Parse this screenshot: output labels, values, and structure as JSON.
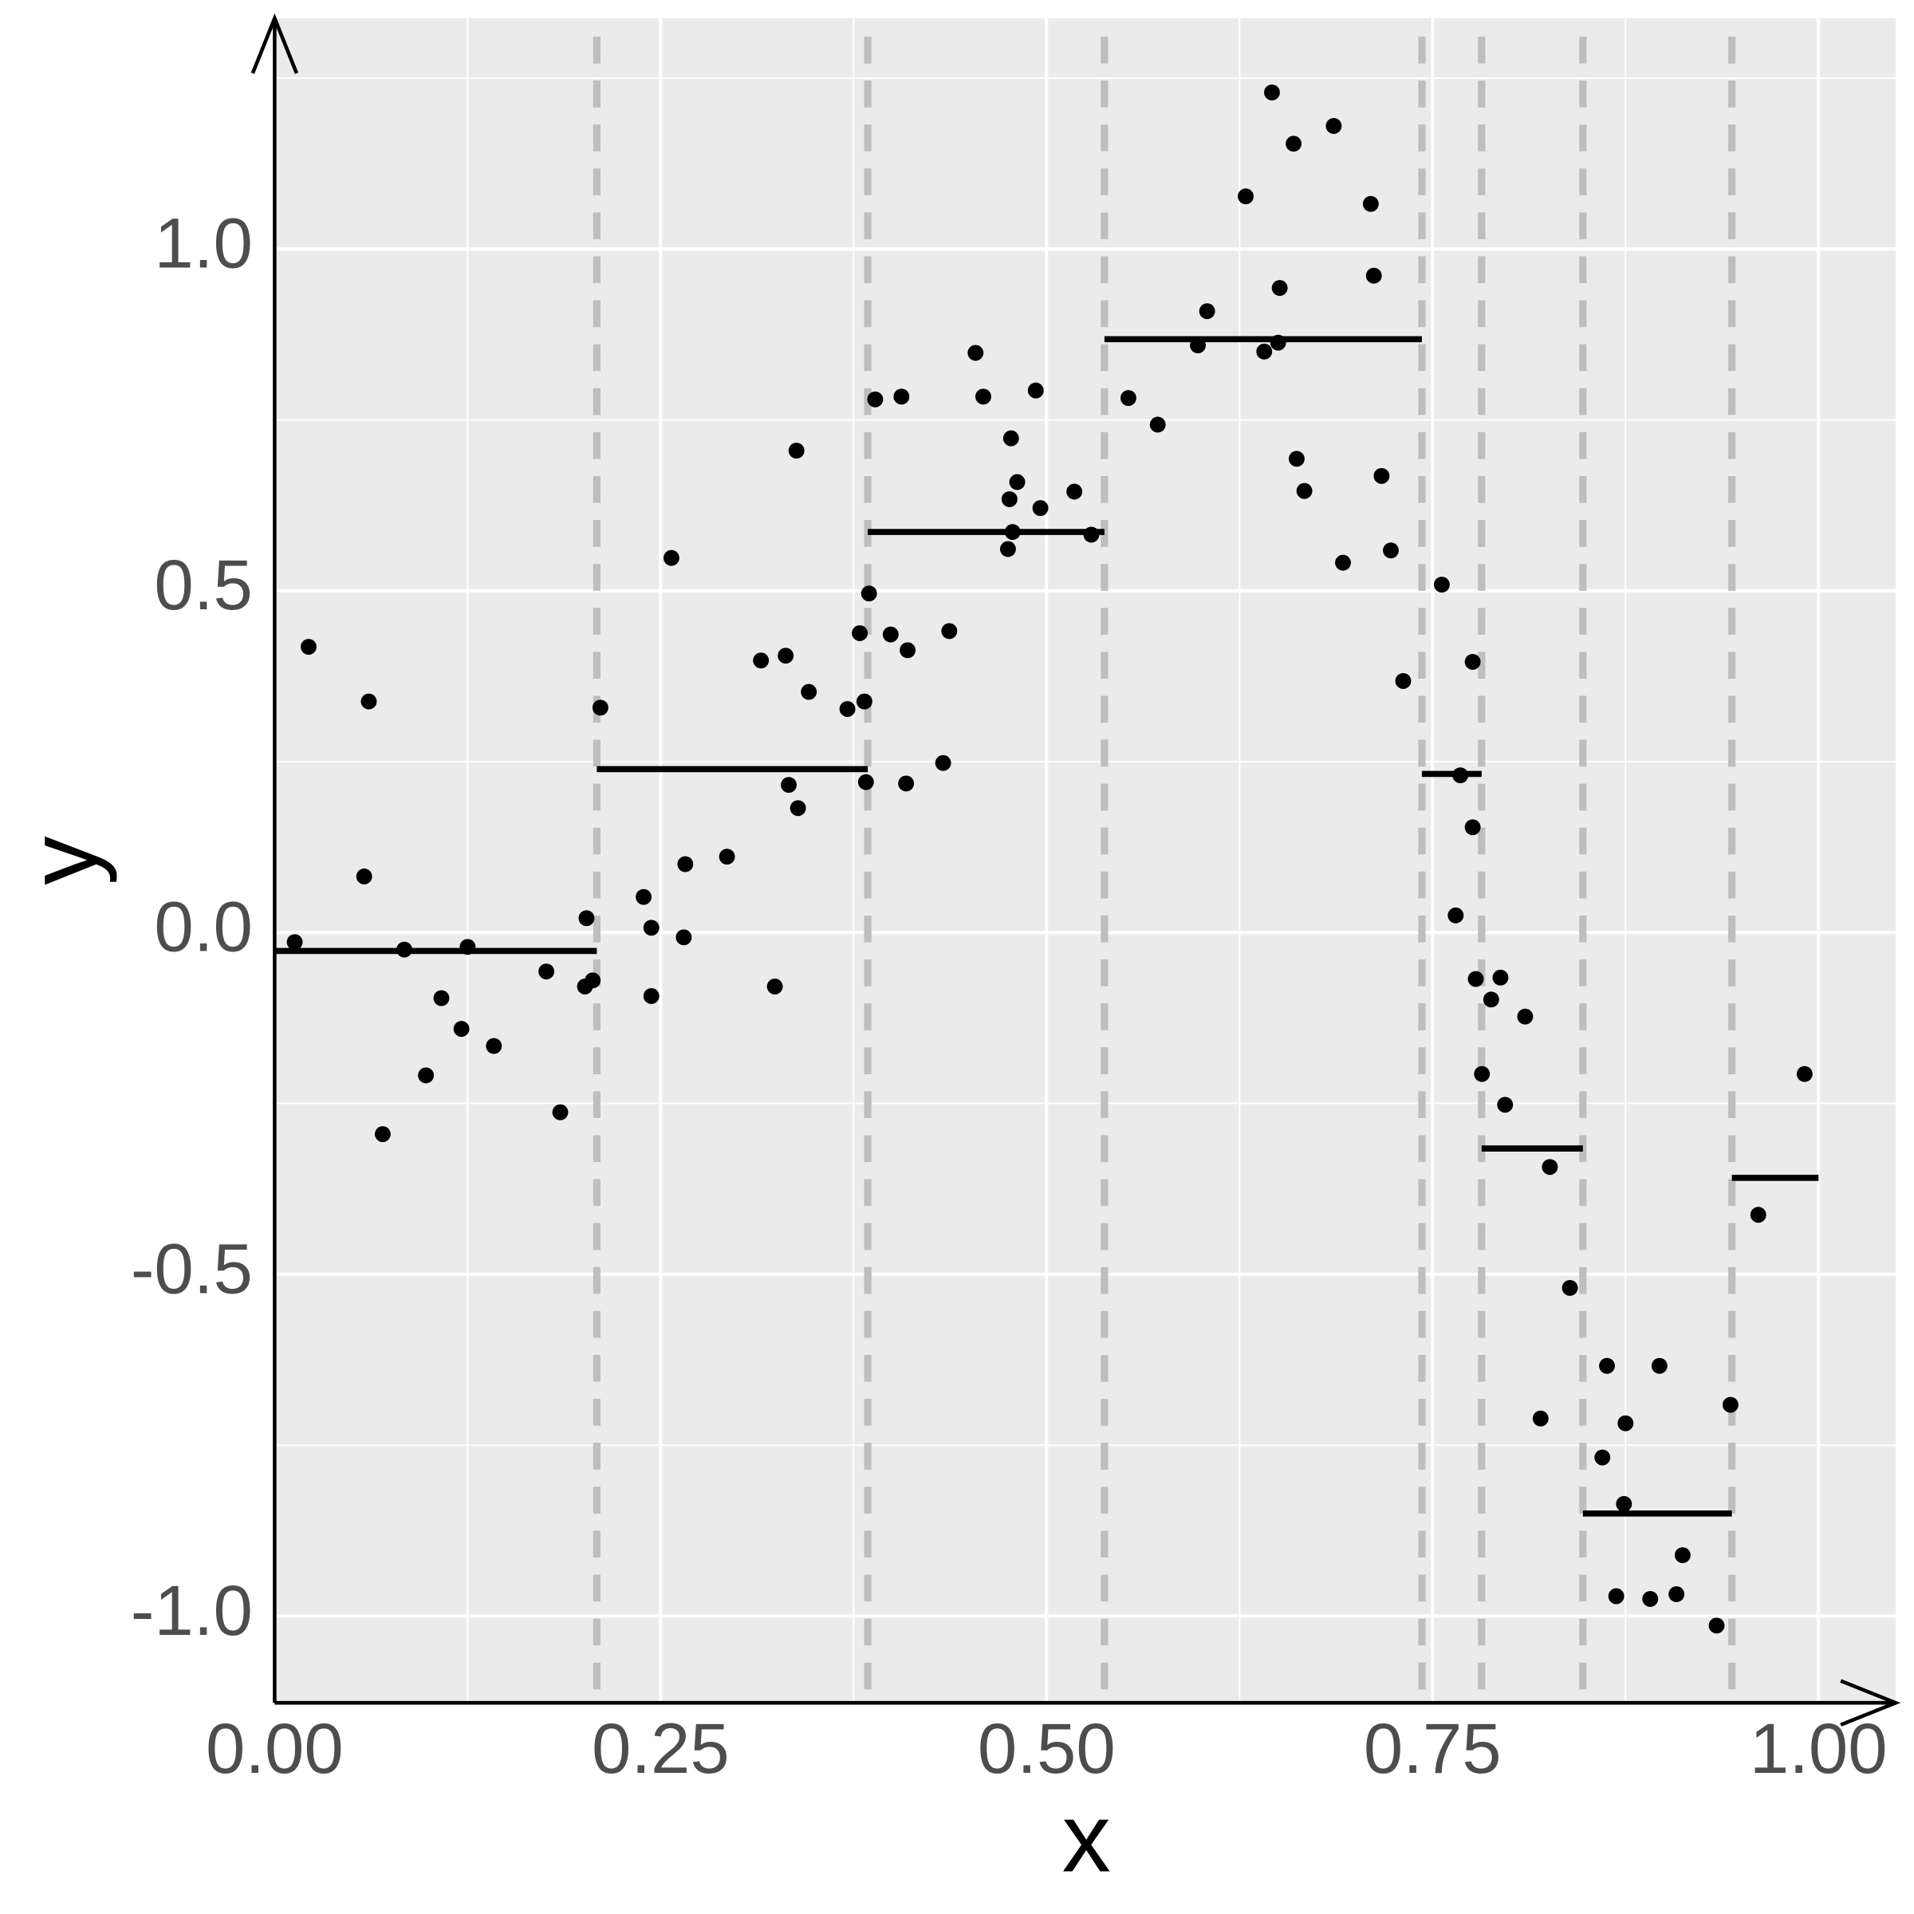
{
  "chart_data": {
    "type": "scatter",
    "x_label": "x",
    "y_label": "y",
    "color": "#000000",
    "x": [
      0.013,
      0.022,
      0.058,
      0.061,
      0.07,
      0.084,
      0.098,
      0.108,
      0.121,
      0.125,
      0.142,
      0.176,
      0.185,
      0.201,
      0.202,
      0.206,
      0.211,
      0.239,
      0.244,
      0.244,
      0.257,
      0.265,
      0.266,
      0.293,
      0.315,
      0.324,
      0.331,
      0.333,
      0.338,
      0.339,
      0.346,
      0.371,
      0.379,
      0.382,
      0.383,
      0.385,
      0.389,
      0.399,
      0.406,
      0.409,
      0.41,
      0.433,
      0.437,
      0.454,
      0.459,
      0.475,
      0.476,
      0.477,
      0.478,
      0.481,
      0.493,
      0.496,
      0.518,
      0.529,
      0.553,
      0.572,
      0.598,
      0.604,
      0.629,
      0.641,
      0.646,
      0.65,
      0.651,
      0.66,
      0.662,
      0.667,
      0.686,
      0.692,
      0.71,
      0.712,
      0.717,
      0.723,
      0.731,
      0.756,
      0.765,
      0.768,
      0.776,
      0.776,
      0.778,
      0.782,
      0.788,
      0.794,
      0.797,
      0.81,
      0.82,
      0.826,
      0.839,
      0.86,
      0.863,
      0.869,
      0.874,
      0.875,
      0.891,
      0.897,
      0.908,
      0.912,
      0.934,
      0.943,
      0.961,
      0.991
    ],
    "values": [
      -0.014,
      0.418,
      0.082,
      0.338,
      -0.295,
      -0.025,
      -0.209,
      -0.096,
      -0.141,
      -0.021,
      -0.166,
      -0.057,
      -0.263,
      -0.079,
      0.021,
      -0.07,
      0.329,
      0.052,
      0.007,
      -0.093,
      0.548,
      -0.007,
      0.1,
      0.111,
      0.398,
      -0.079,
      0.405,
      0.216,
      0.705,
      0.182,
      0.352,
      0.327,
      0.438,
      0.338,
      0.22,
      0.496,
      0.78,
      0.436,
      0.784,
      0.218,
      0.413,
      0.248,
      0.441,
      0.848,
      0.784,
      0.561,
      0.634,
      0.723,
      0.586,
      0.659,
      0.793,
      0.621,
      0.645,
      0.582,
      0.782,
      0.743,
      0.859,
      0.909,
      1.077,
      0.85,
      1.229,
      0.863,
      0.943,
      1.154,
      0.693,
      0.646,
      1.18,
      0.541,
      1.066,
      0.961,
      0.668,
      0.559,
      0.368,
      0.509,
      0.025,
      0.23,
      0.396,
      0.154,
      -0.068,
      -0.207,
      -0.098,
      -0.066,
      -0.252,
      -0.123,
      -0.711,
      -0.343,
      -0.52,
      -0.768,
      -0.634,
      -0.971,
      -0.836,
      -0.718,
      -0.975,
      -0.634,
      -0.968,
      -0.911,
      -1.014,
      -0.691,
      -0.413,
      -0.207
    ],
    "step_edges": [
      0,
      0.2087,
      0.3842,
      0.5375,
      0.7431,
      0.7818,
      0.8474,
      0.9439,
      1.0
    ],
    "step_values": [
      -0.027,
      0.239,
      0.586,
      0.868,
      0.232,
      -0.316,
      -0.85,
      -0.359
    ],
    "step_color": "#000000",
    "split_color": "#bebebe",
    "xlim": [
      0,
      1.05
    ],
    "ylim": [
      -1.127,
      1.3375
    ],
    "xticks": [
      {
        "value": 0,
        "label": "0.00"
      },
      {
        "value": 0.25,
        "label": "0.25"
      },
      {
        "value": 0.5,
        "label": "0.50"
      },
      {
        "value": 0.75,
        "label": "0.75"
      },
      {
        "value": 1,
        "label": "1.00"
      }
    ],
    "yticks": [
      {
        "value": -1,
        "label": "-1.0"
      },
      {
        "value": -0.5,
        "label": "-0.5"
      },
      {
        "value": 0,
        "label": "0.0"
      },
      {
        "value": 0.5,
        "label": "0.5"
      },
      {
        "value": 1,
        "label": "1.0"
      }
    ],
    "grid": true,
    "minor_grid": true
  }
}
